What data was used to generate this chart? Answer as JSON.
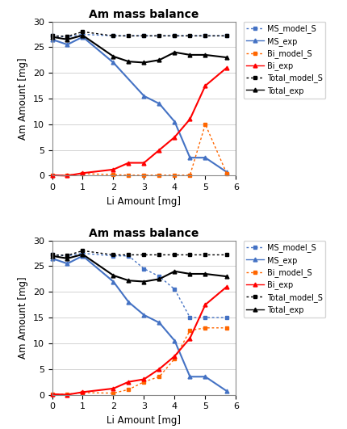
{
  "title": "Am mass balance",
  "xlabel": "Li Amount [mg]",
  "ylabel": "Am Amount [mg]",
  "ylim": [
    0,
    30
  ],
  "xlim": [
    0,
    6
  ],
  "chart1": {
    "MS_model_S": {
      "x": [
        0,
        0.5,
        1,
        2,
        3,
        4,
        5,
        5.7
      ],
      "y": [
        27.2,
        27.0,
        27.5,
        27.2,
        27.2,
        27.2,
        27.2,
        27.2
      ],
      "color": "#4472C4",
      "linestyle": "dotted",
      "marker": "s"
    },
    "MS_exp": {
      "x": [
        0,
        0.5,
        1,
        2,
        3,
        3.5,
        4,
        4.5,
        5,
        5.7
      ],
      "y": [
        26.5,
        25.5,
        27.0,
        22.0,
        15.5,
        14.0,
        10.5,
        3.5,
        3.5,
        0.7
      ],
      "color": "#4472C4",
      "linestyle": "solid",
      "marker": "^"
    },
    "Bi_model_S": {
      "x": [
        0,
        0.5,
        1,
        2,
        2.5,
        3,
        3.5,
        4,
        4.5,
        5,
        5.7
      ],
      "y": [
        0.1,
        0.1,
        0.4,
        0.2,
        0.1,
        0.1,
        0.1,
        0.1,
        0.1,
        10.0,
        0.4
      ],
      "color": "#FF6600",
      "linestyle": "dotted",
      "marker": "s"
    },
    "Bi_exp": {
      "x": [
        0,
        0.5,
        1,
        2,
        2.5,
        3,
        3.5,
        4,
        4.5,
        5,
        5.7
      ],
      "y": [
        0.1,
        0.0,
        0.5,
        1.2,
        2.5,
        2.5,
        5.0,
        7.5,
        11.0,
        17.5,
        21.0
      ],
      "color": "#FF0000",
      "linestyle": "solid",
      "marker": "^"
    },
    "Total_model_S": {
      "x": [
        0,
        0.5,
        1,
        2,
        2.5,
        3,
        3.5,
        4,
        4.5,
        5,
        5.7
      ],
      "y": [
        27.2,
        27.1,
        28.0,
        27.2,
        27.2,
        27.2,
        27.2,
        27.2,
        27.2,
        27.2,
        27.2
      ],
      "color": "#000000",
      "linestyle": "dotted",
      "marker": "s"
    },
    "Total_exp": {
      "x": [
        0,
        0.5,
        1,
        2,
        2.5,
        3,
        3.5,
        4,
        4.5,
        5,
        5.7
      ],
      "y": [
        27.0,
        26.5,
        27.3,
        23.2,
        22.2,
        22.0,
        22.5,
        24.0,
        23.5,
        23.5,
        23.0
      ],
      "color": "#000000",
      "linestyle": "solid",
      "marker": "^"
    }
  },
  "chart2": {
    "MS_model_S": {
      "x": [
        0,
        0.5,
        1,
        2,
        2.5,
        3,
        3.5,
        4,
        4.5,
        5,
        5.7
      ],
      "y": [
        27.2,
        27.0,
        27.5,
        27.0,
        27.0,
        24.5,
        23.0,
        20.5,
        15.0,
        15.0,
        15.0
      ],
      "color": "#4472C4",
      "linestyle": "dotted",
      "marker": "s"
    },
    "MS_exp": {
      "x": [
        0,
        0.5,
        1,
        2,
        2.5,
        3,
        3.5,
        4,
        4.5,
        5,
        5.7
      ],
      "y": [
        26.5,
        25.5,
        27.0,
        22.0,
        18.0,
        15.5,
        14.0,
        10.5,
        3.5,
        3.5,
        0.7
      ],
      "color": "#4472C4",
      "linestyle": "solid",
      "marker": "^"
    },
    "Bi_model_S": {
      "x": [
        0,
        0.5,
        1,
        2,
        2.5,
        3,
        3.5,
        4,
        4.5,
        5,
        5.7
      ],
      "y": [
        0.1,
        0.1,
        0.4,
        0.3,
        1.0,
        2.5,
        3.5,
        7.0,
        12.5,
        13.0,
        13.0
      ],
      "color": "#FF6600",
      "linestyle": "dotted",
      "marker": "s"
    },
    "Bi_exp": {
      "x": [
        0,
        0.5,
        1,
        2,
        2.5,
        3,
        3.5,
        4,
        4.5,
        5,
        5.7
      ],
      "y": [
        0.1,
        0.0,
        0.5,
        1.2,
        2.5,
        3.0,
        5.0,
        7.5,
        11.0,
        17.5,
        21.0
      ],
      "color": "#FF0000",
      "linestyle": "solid",
      "marker": "^"
    },
    "Total_model_S": {
      "x": [
        0,
        0.5,
        1,
        2,
        2.5,
        3,
        3.5,
        4,
        4.5,
        5,
        5.7
      ],
      "y": [
        27.2,
        27.1,
        28.0,
        27.2,
        27.2,
        27.2,
        27.2,
        27.2,
        27.2,
        27.2,
        27.2
      ],
      "color": "#000000",
      "linestyle": "dotted",
      "marker": "s"
    },
    "Total_exp": {
      "x": [
        0,
        0.5,
        1,
        2,
        2.5,
        3,
        3.5,
        4,
        4.5,
        5,
        5.7
      ],
      "y": [
        27.0,
        26.5,
        27.3,
        23.2,
        22.2,
        22.0,
        22.5,
        24.0,
        23.5,
        23.5,
        23.0
      ],
      "color": "#000000",
      "linestyle": "solid",
      "marker": "^"
    }
  },
  "legend_order": [
    "MS_model_S",
    "MS_exp",
    "Bi_model_S",
    "Bi_exp",
    "Total_model_S",
    "Total_exp"
  ],
  "legend_colors": {
    "MS_model_S": "#4472C4",
    "MS_exp": "#4472C4",
    "Bi_model_S": "#FF6600",
    "Bi_exp": "#FF0000",
    "Total_model_S": "#000000",
    "Total_exp": "#000000"
  },
  "legend_linestyles": {
    "MS_model_S": "dotted",
    "MS_exp": "solid",
    "Bi_model_S": "dotted",
    "Bi_exp": "solid",
    "Total_model_S": "dotted",
    "Total_exp": "solid"
  },
  "legend_markers": {
    "MS_model_S": "s",
    "MS_exp": "^",
    "Bi_model_S": "s",
    "Bi_exp": "^",
    "Total_model_S": "s",
    "Total_exp": "^"
  },
  "background_color": "#FFFFFF"
}
